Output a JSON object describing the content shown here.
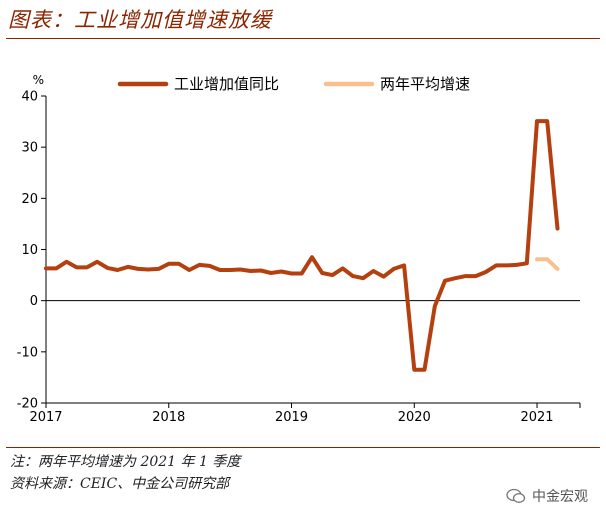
{
  "header": {
    "title": "图表：工业增加值增速放缓"
  },
  "footer": {
    "note": "注：两年平均增速为 2021 年 1 季度",
    "source": "资料来源：CEIC、中金公司研究部",
    "watermark": "中金宏观"
  },
  "colors": {
    "accent": "#8b2500",
    "series1": "#b5400f",
    "series2": "#f8c08c"
  },
  "chart_data": {
    "type": "line",
    "ylabel": "%",
    "ylim": [
      -20,
      40
    ],
    "yticks": [
      -20,
      -10,
      0,
      10,
      20,
      30,
      40
    ],
    "xticks": [
      "2017",
      "2018",
      "2019",
      "2020",
      "2021"
    ],
    "xlim": [
      2017.0,
      2021.35
    ],
    "grid": false,
    "legend": "top",
    "series": [
      {
        "name": "工业增加值同比",
        "x": [
          2017.0,
          2017.083,
          2017.167,
          2017.25,
          2017.333,
          2017.417,
          2017.5,
          2017.583,
          2017.667,
          2017.75,
          2017.833,
          2017.917,
          2018.0,
          2018.083,
          2018.167,
          2018.25,
          2018.333,
          2018.417,
          2018.5,
          2018.583,
          2018.667,
          2018.75,
          2018.833,
          2018.917,
          2019.0,
          2019.083,
          2019.167,
          2019.25,
          2019.333,
          2019.417,
          2019.5,
          2019.583,
          2019.667,
          2019.75,
          2019.833,
          2019.917,
          2020.0,
          2020.083,
          2020.167,
          2020.25,
          2020.333,
          2020.417,
          2020.5,
          2020.583,
          2020.667,
          2020.75,
          2020.833,
          2020.917,
          2021.0,
          2021.083,
          2021.167
        ],
        "values": [
          6.3,
          6.3,
          7.6,
          6.5,
          6.5,
          7.6,
          6.4,
          6.0,
          6.6,
          6.2,
          6.1,
          6.2,
          7.2,
          7.2,
          6.0,
          7.0,
          6.8,
          6.0,
          6.0,
          6.1,
          5.8,
          5.9,
          5.4,
          5.7,
          5.3,
          5.3,
          8.5,
          5.4,
          5.0,
          6.3,
          4.8,
          4.4,
          5.8,
          4.7,
          6.2,
          6.9,
          -13.5,
          -13.5,
          -1.1,
          3.9,
          4.4,
          4.8,
          4.8,
          5.6,
          6.9,
          6.9,
          7.0,
          7.3,
          35.1,
          35.1,
          14.1
        ]
      },
      {
        "name": "两年平均增速",
        "x": [
          2021.0,
          2021.083,
          2021.167
        ],
        "values": [
          8.1,
          8.1,
          6.2
        ]
      }
    ]
  }
}
